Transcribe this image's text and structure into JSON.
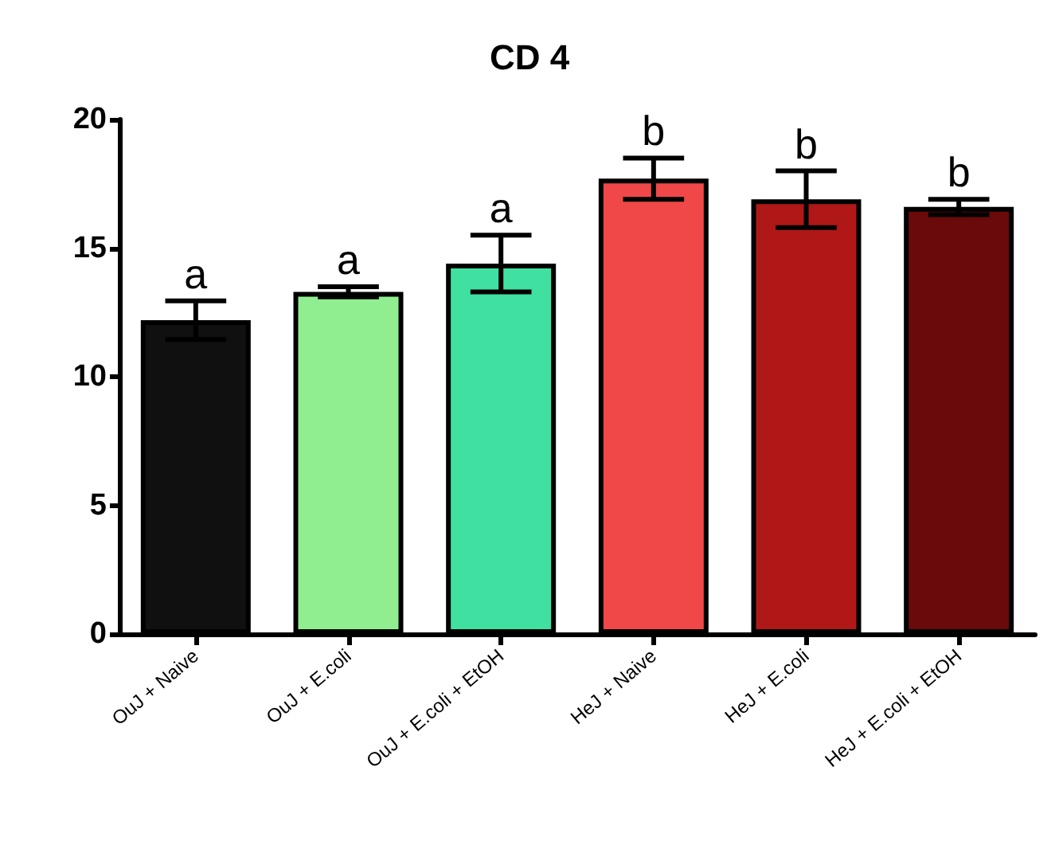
{
  "chart_data": {
    "type": "bar",
    "title": "CD 4",
    "categories": [
      "OuJ + Naive",
      "OuJ + E.coli",
      "OuJ + E.coli + EtOH",
      "HeJ + Naive",
      "HeJ + E.coli",
      "HeJ + E.coli + EtOH"
    ],
    "values": [
      12.2,
      13.3,
      14.4,
      17.7,
      16.9,
      16.6
    ],
    "errors": [
      0.75,
      0.2,
      1.1,
      0.8,
      1.1,
      0.3
    ],
    "colors": [
      "#101010",
      "#90ee90",
      "#40e0a0",
      "#f04848",
      "#b01818",
      "#6a0a0a"
    ],
    "ylim": [
      0,
      20
    ],
    "yticks": [
      0,
      5,
      10,
      15,
      20
    ],
    "grid": false,
    "annotations": [
      {
        "text": "a",
        "x": "OuJ + Naive",
        "y": 12.95
      },
      {
        "text": "a",
        "x": "OuJ + E.coli",
        "y": 13.5
      },
      {
        "text": "a",
        "x": "OuJ + E.coli + EtOH",
        "y": 15.5
      },
      {
        "text": "b",
        "x": "HeJ + Naive",
        "y": 18.5
      },
      {
        "text": "b",
        "x": "HeJ + E.coli",
        "y": 18.0
      },
      {
        "text": "b",
        "x": "HeJ + E.coli + EtOH",
        "y": 16.9
      }
    ]
  }
}
